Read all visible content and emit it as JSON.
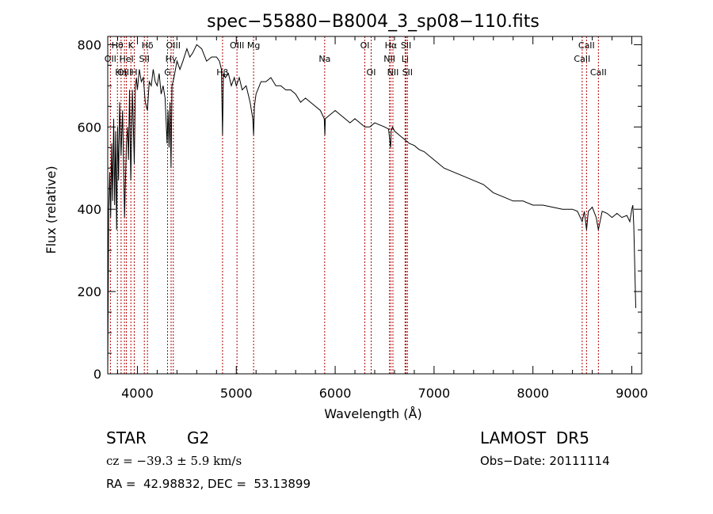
{
  "chart_data": {
    "type": "line",
    "title": "spec−55880−B8004_3_sp08−110.fits",
    "xlabel": "Wavelength (Å)",
    "ylabel": "Flux (relative)",
    "xlim": [
      3700,
      9100
    ],
    "ylim": [
      0,
      820
    ],
    "xticks": [
      4000,
      5000,
      6000,
      7000,
      8000,
      9000
    ],
    "yticks": [
      0,
      200,
      400,
      600,
      800
    ],
    "grid": false,
    "series": [
      {
        "x": [
          3700,
          3710,
          3720,
          3730,
          3740,
          3750,
          3760,
          3770,
          3780,
          3790,
          3800,
          3810,
          3820,
          3835,
          3850,
          3870,
          3889,
          3900,
          3910,
          3920,
          3933,
          3950,
          3968,
          3980,
          3990,
          4000,
          4020,
          4040,
          4060,
          4080,
          4101,
          4120,
          4140,
          4160,
          4180,
          4200,
          4220,
          4240,
          4260,
          4280,
          4300,
          4310,
          4320,
          4330,
          4340,
          4350,
          4370,
          4400,
          4430,
          4460,
          4500,
          4530,
          4560,
          4600,
          4650,
          4700,
          4750,
          4800,
          4830,
          4850,
          4861,
          4870,
          4890,
          4920,
          4950,
          4980,
          5000,
          5030,
          5060,
          5100,
          5140,
          5167,
          5175,
          5183,
          5200,
          5250,
          5300,
          5350,
          5400,
          5450,
          5500,
          5550,
          5600,
          5650,
          5700,
          5750,
          5800,
          5850,
          5890,
          5893,
          5896,
          5900,
          5950,
          6000,
          6050,
          6100,
          6150,
          6200,
          6250,
          6300,
          6350,
          6400,
          6450,
          6500,
          6540,
          6560,
          6563,
          6566,
          6580,
          6600,
          6650,
          6700,
          6750,
          6800,
          6850,
          6900,
          7000,
          7100,
          7200,
          7300,
          7400,
          7500,
          7600,
          7700,
          7800,
          7900,
          8000,
          8100,
          8200,
          8300,
          8400,
          8450,
          8498,
          8520,
          8542,
          8560,
          8600,
          8640,
          8662,
          8700,
          8750,
          8800,
          8850,
          8900,
          8950,
          8980,
          9000,
          9010,
          9020,
          9040
        ],
        "y": [
          0,
          400,
          490,
          380,
          560,
          420,
          620,
          410,
          590,
          350,
          600,
          470,
          660,
          530,
          640,
          380,
          560,
          600,
          520,
          690,
          470,
          690,
          510,
          700,
          720,
          690,
          740,
          710,
          720,
          660,
          640,
          710,
          700,
          740,
          710,
          700,
          730,
          680,
          700,
          670,
          560,
          640,
          550,
          660,
          500,
          700,
          720,
          760,
          740,
          760,
          790,
          770,
          780,
          800,
          790,
          760,
          770,
          770,
          760,
          740,
          580,
          730,
          720,
          730,
          700,
          720,
          700,
          720,
          690,
          700,
          660,
          620,
          580,
          650,
          680,
          710,
          710,
          720,
          700,
          700,
          690,
          690,
          680,
          660,
          670,
          660,
          650,
          640,
          620,
          600,
          580,
          620,
          630,
          640,
          630,
          620,
          610,
          620,
          610,
          600,
          600,
          610,
          605,
          600,
          595,
          550,
          560,
          590,
          600,
          590,
          580,
          570,
          560,
          555,
          545,
          540,
          520,
          500,
          490,
          480,
          470,
          460,
          440,
          430,
          420,
          420,
          410,
          410,
          405,
          400,
          400,
          395,
          370,
          395,
          350,
          395,
          405,
          380,
          350,
          395,
          390,
          380,
          390,
          380,
          385,
          370,
          400,
          410,
          360,
          160
        ]
      }
    ],
    "annotations": [
      {
        "label": "Hθ",
        "x": 3798,
        "row": 1
      },
      {
        "label": "K",
        "x": 3934,
        "row": 1
      },
      {
        "label": "Hδ",
        "x": 4102,
        "row": 1
      },
      {
        "label": "OII",
        "x": 3727,
        "row": 2
      },
      {
        "label": "HeI",
        "x": 3889,
        "row": 2
      },
      {
        "label": "SII",
        "x": 4070,
        "row": 2
      },
      {
        "label": "OIII",
        "x": 3869,
        "row": 3
      },
      {
        "label": "Hη",
        "x": 3835,
        "row": 3
      },
      {
        "label": "H",
        "x": 3968,
        "row": 3
      },
      {
        "label": "OIII",
        "x": 4363,
        "row": 1
      },
      {
        "label": "Hγ",
        "x": 4341,
        "row": 2
      },
      {
        "label": "G",
        "x": 4305,
        "row": 3
      },
      {
        "label": "OIII",
        "x": 5007,
        "row": 1
      },
      {
        "label": "Hβ",
        "x": 4861,
        "row": 3
      },
      {
        "label": "Mg",
        "x": 5175,
        "row": 1
      },
      {
        "label": "Na",
        "x": 5894,
        "row": 2
      },
      {
        "label": "OI",
        "x": 6300,
        "row": 1
      },
      {
        "label": "OI",
        "x": 6364,
        "row": 3
      },
      {
        "label": "Hα",
        "x": 6563,
        "row": 1
      },
      {
        "label": "NII",
        "x": 6549,
        "row": 2
      },
      {
        "label": "NII",
        "x": 6584,
        "row": 3
      },
      {
        "label": "SII",
        "x": 6717,
        "row": 1
      },
      {
        "label": "Li",
        "x": 6707,
        "row": 2
      },
      {
        "label": "SII",
        "x": 6731,
        "row": 3
      },
      {
        "label": "CaII",
        "x": 8542,
        "row": 1
      },
      {
        "label": "CaII",
        "x": 8498,
        "row": 2
      },
      {
        "label": "CaII",
        "x": 8662,
        "row": 3
      }
    ]
  },
  "info": {
    "object_class": "STAR",
    "subclass": "G2",
    "survey": "LAMOST  DR5",
    "cz": "cz = −39.3 ± 5.9 km/s",
    "obs_date": "Obs−Date: 20111114",
    "radec": "RA =  42.98832, DEC =  53.13899"
  }
}
